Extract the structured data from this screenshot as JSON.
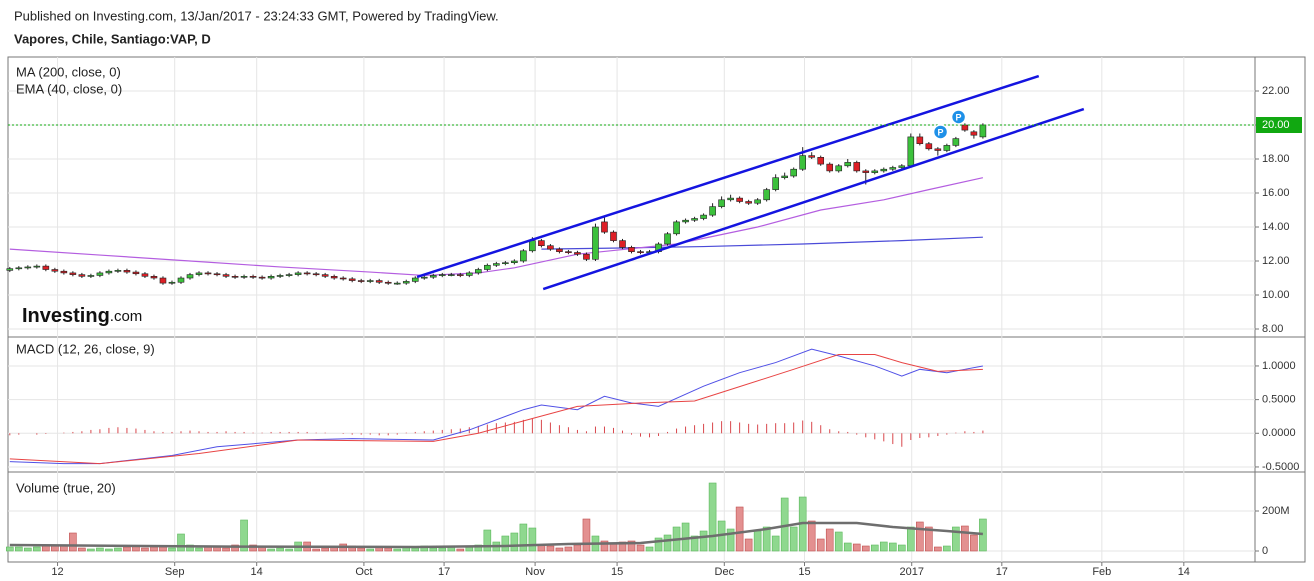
{
  "header": {
    "published": "Published on Investing.com, 13/Jan/2017 - 23:24:33 GMT, Powered by TradingView.",
    "symbol": "Vapores, Chile, Santiago:VAP, D"
  },
  "logo": {
    "brand": "Investing",
    "suffix": ".com"
  },
  "chart_data": [
    {
      "type": "candlestick",
      "xlim": [
        -0.2,
        138.2
      ],
      "ylim": [
        7.53,
        24.0
      ],
      "yticks": [
        {
          "value": 8,
          "label": "8.00"
        },
        {
          "value": 10,
          "label": "10.00"
        },
        {
          "value": 12,
          "label": "12.00"
        },
        {
          "value": 14,
          "label": "14.00"
        },
        {
          "value": 16,
          "label": "16.00"
        },
        {
          "value": 18,
          "label": "18.00"
        },
        {
          "value": 20,
          "label": "20.00"
        },
        {
          "value": 22,
          "label": "22.00"
        }
      ],
      "up_color": "#3cc13c",
      "down_color": "#dd1f26",
      "open": [
        11.45,
        11.55,
        11.6,
        11.65,
        11.7,
        11.5,
        11.4,
        11.3,
        11.2,
        11.1,
        11.15,
        11.3,
        11.4,
        11.45,
        11.35,
        11.25,
        11.1,
        11.0,
        10.7,
        10.75,
        11.0,
        11.2,
        11.3,
        11.25,
        11.2,
        11.1,
        11.05,
        11.1,
        11.05,
        11.0,
        11.1,
        11.15,
        11.2,
        11.3,
        11.25,
        11.2,
        11.1,
        11.0,
        10.95,
        10.85,
        10.8,
        10.85,
        10.75,
        10.7,
        10.7,
        10.8,
        11.0,
        11.05,
        11.15,
        11.2,
        11.2,
        11.15,
        11.3,
        11.5,
        11.75,
        11.85,
        11.9,
        12.0,
        12.6,
        13.2,
        12.9,
        12.7,
        12.55,
        12.5,
        12.4,
        12.1,
        14.3,
        13.7,
        13.2,
        12.8,
        12.55,
        12.5,
        12.55,
        13.0,
        13.6,
        14.3,
        14.4,
        14.5,
        14.7,
        15.2,
        15.6,
        15.7,
        15.5,
        15.4,
        15.6,
        16.2,
        16.9,
        17.0,
        17.4,
        18.2,
        18.1,
        17.7,
        17.3,
        17.6,
        17.8,
        17.3,
        17.2,
        17.3,
        17.4,
        17.5,
        17.6,
        19.3,
        18.9,
        18.6,
        18.5,
        18.8,
        20.0,
        19.6,
        19.3
      ],
      "high": [
        11.65,
        11.7,
        11.75,
        11.8,
        11.8,
        11.6,
        11.5,
        11.4,
        11.3,
        11.25,
        11.4,
        11.5,
        11.55,
        11.55,
        11.45,
        11.35,
        11.2,
        11.1,
        10.85,
        11.1,
        11.3,
        11.4,
        11.4,
        11.35,
        11.3,
        11.2,
        11.2,
        11.2,
        11.15,
        11.2,
        11.25,
        11.3,
        11.4,
        11.4,
        11.35,
        11.3,
        11.2,
        11.1,
        11.05,
        10.95,
        10.95,
        10.95,
        10.85,
        10.8,
        10.9,
        11.1,
        11.15,
        11.25,
        11.3,
        11.3,
        11.3,
        11.4,
        11.6,
        11.85,
        11.95,
        12.0,
        12.1,
        12.7,
        13.4,
        13.3,
        13.0,
        12.8,
        12.65,
        12.6,
        12.5,
        14.2,
        14.6,
        13.8,
        13.3,
        12.9,
        12.65,
        12.65,
        13.1,
        13.7,
        14.4,
        14.5,
        14.6,
        14.8,
        15.4,
        15.8,
        15.9,
        15.8,
        15.6,
        15.7,
        16.3,
        17.1,
        17.2,
        17.5,
        18.7,
        18.4,
        18.2,
        17.8,
        17.7,
        18.0,
        17.9,
        17.4,
        17.4,
        17.5,
        17.6,
        17.7,
        19.5,
        19.5,
        19.0,
        18.7,
        18.9,
        19.3,
        20.1,
        19.7,
        20.1
      ],
      "low": [
        11.35,
        11.45,
        11.5,
        11.55,
        11.4,
        11.3,
        11.2,
        11.1,
        11.0,
        11.0,
        11.05,
        11.2,
        11.3,
        11.25,
        11.15,
        11.0,
        10.9,
        10.6,
        10.6,
        10.65,
        10.9,
        11.1,
        11.15,
        11.1,
        11.0,
        10.95,
        10.95,
        10.95,
        10.9,
        10.9,
        11.0,
        11.05,
        11.1,
        11.15,
        11.1,
        11.0,
        10.9,
        10.85,
        10.75,
        10.7,
        10.7,
        10.65,
        10.6,
        10.6,
        10.6,
        10.7,
        10.9,
        10.95,
        11.05,
        11.1,
        11.05,
        11.05,
        11.2,
        11.4,
        11.65,
        11.75,
        11.8,
        11.9,
        12.5,
        12.8,
        12.6,
        12.45,
        12.4,
        12.3,
        12.0,
        12.0,
        13.6,
        13.1,
        12.7,
        12.45,
        12.4,
        12.4,
        12.45,
        12.9,
        13.5,
        14.2,
        14.3,
        14.4,
        14.6,
        15.1,
        15.5,
        15.4,
        15.3,
        15.3,
        15.5,
        16.1,
        16.8,
        16.9,
        17.3,
        18.0,
        17.6,
        17.2,
        17.2,
        17.5,
        17.2,
        16.5,
        17.1,
        17.2,
        17.3,
        17.4,
        17.5,
        18.8,
        18.5,
        18.2,
        18.4,
        18.7,
        19.6,
        19.2,
        19.2
      ],
      "close": [
        11.55,
        11.6,
        11.65,
        11.7,
        11.5,
        11.4,
        11.3,
        11.2,
        11.1,
        11.15,
        11.3,
        11.4,
        11.45,
        11.35,
        11.25,
        11.1,
        11.0,
        10.7,
        10.75,
        11.0,
        11.2,
        11.3,
        11.25,
        11.2,
        11.1,
        11.05,
        11.1,
        11.05,
        11.0,
        11.1,
        11.15,
        11.2,
        11.3,
        11.25,
        11.2,
        11.1,
        11.0,
        10.95,
        10.85,
        10.8,
        10.85,
        10.75,
        10.7,
        10.7,
        10.8,
        11.0,
        11.05,
        11.15,
        11.2,
        11.2,
        11.15,
        11.3,
        11.5,
        11.75,
        11.85,
        11.9,
        12.0,
        12.6,
        13.2,
        12.9,
        12.7,
        12.55,
        12.5,
        12.4,
        12.1,
        14.0,
        13.7,
        13.2,
        12.8,
        12.55,
        12.5,
        12.55,
        13.0,
        13.6,
        14.3,
        14.4,
        14.5,
        14.7,
        15.2,
        15.6,
        15.7,
        15.5,
        15.4,
        15.6,
        16.2,
        16.9,
        17.0,
        17.4,
        18.2,
        18.1,
        17.7,
        17.3,
        17.6,
        17.8,
        17.3,
        17.2,
        17.3,
        17.4,
        17.5,
        17.6,
        19.3,
        18.9,
        18.6,
        18.5,
        18.8,
        19.2,
        19.7,
        19.4,
        20.0
      ],
      "series": [
        {
          "name": "MA (200, close, 0)",
          "color": "#4b4bd8",
          "x": [
            59,
            66,
            77,
            88,
            99,
            108
          ],
          "values": [
            12.7,
            12.75,
            12.85,
            13.0,
            13.2,
            13.4
          ]
        },
        {
          "name": "EMA (40, close, 0)",
          "color": "#b45ee0",
          "x": [
            0,
            10,
            20,
            30,
            40,
            46,
            52,
            56,
            63,
            74,
            83,
            90,
            97,
            102,
            108
          ],
          "values": [
            12.7,
            12.35,
            12.0,
            11.65,
            11.35,
            11.15,
            11.3,
            11.6,
            12.4,
            13.0,
            14.0,
            15.0,
            15.6,
            16.2,
            16.9
          ]
        }
      ],
      "trendlines": [
        {
          "color": "#1414e0",
          "x": [
            45.2,
            114.2
          ],
          "y": [
            11.06,
            22.88
          ]
        },
        {
          "color": "#1414e0",
          "x": [
            59.2,
            119.2
          ],
          "y": [
            10.35,
            20.94
          ]
        }
      ],
      "last_value": {
        "value": 20.0,
        "label": "20.00",
        "color": "#11a811"
      },
      "markers": [
        {
          "x": 103.3,
          "y": 19.59,
          "label": "P"
        },
        {
          "x": 105.3,
          "y": 20.47,
          "label": "P"
        }
      ]
    },
    {
      "type": "macd",
      "title": "MACD (12, 26, close, 9)",
      "xlim": [
        -0.2,
        138.2
      ],
      "ylim": [
        -0.575,
        1.43
      ],
      "yticks": [
        {
          "value": -0.5,
          "label": "-0.5000"
        },
        {
          "value": 0,
          "label": "0.0000"
        },
        {
          "value": 0.5,
          "label": "0.5000"
        },
        {
          "value": 1,
          "label": "1.0000"
        }
      ],
      "histogram": {
        "color": "#d9474c",
        "values": [
          -0.03,
          -0.02,
          0.0,
          -0.02,
          -0.01,
          0.0,
          0.01,
          0.02,
          0.03,
          0.05,
          0.06,
          0.08,
          0.09,
          0.08,
          0.07,
          0.05,
          0.03,
          0.02,
          0.02,
          0.03,
          0.04,
          0.03,
          0.02,
          0.02,
          0.03,
          0.02,
          0.02,
          0.01,
          0.01,
          0.02,
          0.02,
          0.02,
          0.02,
          0.02,
          0.01,
          0.01,
          0.0,
          -0.01,
          -0.02,
          -0.02,
          -0.02,
          -0.03,
          -0.03,
          -0.02,
          0.01,
          0.02,
          0.03,
          0.04,
          0.05,
          0.06,
          0.07,
          0.09,
          0.11,
          0.13,
          0.15,
          0.16,
          0.17,
          0.2,
          0.22,
          0.2,
          0.16,
          0.12,
          0.09,
          0.05,
          0.03,
          0.1,
          0.1,
          0.08,
          0.04,
          -0.02,
          -0.05,
          -0.06,
          -0.04,
          0.02,
          0.07,
          0.1,
          0.12,
          0.14,
          0.16,
          0.18,
          0.18,
          0.16,
          0.14,
          0.13,
          0.14,
          0.15,
          0.15,
          0.16,
          0.19,
          0.17,
          0.12,
          0.06,
          0.03,
          0.02,
          -0.02,
          -0.06,
          -0.09,
          -0.12,
          -0.16,
          -0.2,
          -0.1,
          -0.07,
          -0.06,
          -0.04,
          -0.02,
          0.01,
          0.03,
          0.02,
          0.04
        ]
      },
      "series": [
        {
          "color": "#5050e6",
          "x": [
            0,
            6,
            10,
            18,
            23,
            32,
            38,
            47,
            51,
            57,
            59,
            63,
            66,
            69,
            72,
            77,
            81,
            85,
            89,
            92,
            96,
            99,
            101,
            104,
            106,
            108
          ],
          "values": [
            -0.42,
            -0.45,
            -0.45,
            -0.33,
            -0.2,
            -0.1,
            -0.08,
            -0.1,
            0.05,
            0.35,
            0.42,
            0.35,
            0.55,
            0.45,
            0.4,
            0.7,
            0.9,
            1.05,
            1.25,
            1.15,
            1.0,
            0.85,
            0.95,
            0.9,
            0.95,
            1.0
          ]
        },
        {
          "color": "#e84444",
          "x": [
            0,
            10,
            21,
            32,
            47,
            52,
            58,
            63,
            70,
            76,
            80,
            87,
            92,
            96,
            99,
            103,
            108
          ],
          "values": [
            -0.38,
            -0.45,
            -0.3,
            -0.1,
            -0.12,
            0.0,
            0.22,
            0.4,
            0.45,
            0.48,
            0.65,
            0.95,
            1.17,
            1.17,
            1.05,
            0.92,
            0.95
          ]
        }
      ]
    },
    {
      "type": "bar",
      "title": "Volume (true, 20)",
      "xlim": [
        -0.2,
        138.2
      ],
      "ylim": [
        -55,
        395
      ],
      "yticks": [
        0,
        {
          "value": 200,
          "label": "200M"
        }
      ],
      "up_color": "#8fd88f",
      "down_color": "#e39090",
      "values": [
        20,
        20,
        15,
        20,
        25,
        30,
        25,
        90,
        15,
        10,
        15,
        10,
        15,
        20,
        25,
        15,
        20,
        20,
        15,
        85,
        30,
        15,
        20,
        25,
        15,
        30,
        155,
        30,
        25,
        10,
        15,
        10,
        45,
        45,
        10,
        15,
        20,
        35,
        25,
        15,
        10,
        20,
        15,
        10,
        20,
        15,
        25,
        15,
        15,
        20,
        10,
        20,
        30,
        105,
        45,
        75,
        90,
        135,
        115,
        30,
        25,
        15,
        20,
        30,
        160,
        75,
        50,
        40,
        45,
        50,
        30,
        20,
        65,
        80,
        120,
        140,
        75,
        100,
        340,
        150,
        110,
        220,
        60,
        100,
        120,
        75,
        265,
        120,
        270,
        150,
        60,
        110,
        95,
        40,
        35,
        25,
        30,
        45,
        40,
        30,
        120,
        145,
        120,
        20,
        25,
        120,
        125,
        80,
        160
      ],
      "series": [
        {
          "color": "#6e6e6e",
          "x": [
            0,
            25,
            45,
            55,
            62,
            70,
            78,
            84,
            88,
            94,
            98,
            104,
            108
          ],
          "values": [
            30,
            22,
            20,
            25,
            35,
            40,
            75,
            110,
            140,
            140,
            120,
            100,
            85
          ]
        }
      ],
      "xticks": [
        {
          "value": 5.3,
          "label": "12"
        },
        {
          "value": 18.3,
          "label": "Sep"
        },
        {
          "value": 27.4,
          "label": "14"
        },
        {
          "value": 39.3,
          "label": "Oct"
        },
        {
          "value": 48.2,
          "label": "17"
        },
        {
          "value": 58.3,
          "label": "Nov"
        },
        {
          "value": 67.4,
          "label": "15"
        },
        {
          "value": 79.3,
          "label": "Dec"
        },
        {
          "value": 88.2,
          "label": "15"
        },
        {
          "value": 100.1,
          "label": "2017"
        },
        {
          "value": 110.1,
          "label": "17"
        },
        {
          "value": 121.2,
          "label": "Feb"
        },
        {
          "value": 130.3,
          "label": "14"
        }
      ]
    }
  ]
}
